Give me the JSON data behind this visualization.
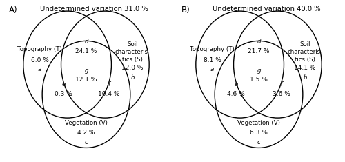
{
  "panel_A": {
    "title": "Undetermined variation 31.0 %",
    "label": "A)",
    "T_label": "Topography (T)",
    "T_val": "6.0 %",
    "T_letter": "a",
    "S_label": "Soil\ncharacteris-\ntics (S)",
    "S_val": "12.0 %",
    "S_letter": "b",
    "V_label": "Vegetation (V)",
    "V_val": "4.2 %",
    "V_letter": "c",
    "d_letter": "d",
    "d_val": "24.1 %",
    "e_letter": "e",
    "e_val": "0.3 %",
    "f_letter": "f",
    "f_val": "10.4 %",
    "g_letter": "g",
    "g_val": "12.1 %"
  },
  "panel_B": {
    "title": "Undetermined variation 40.0 %",
    "label": "B)",
    "T_label": "Topography (T)",
    "T_val": "8.1 %",
    "T_letter": "a",
    "S_label": "Soil\ncharacteris-\ntics (S)",
    "S_val": "14.1 %",
    "S_letter": "b",
    "V_label": "Vegetation (V)",
    "V_val": "6.3 %",
    "V_letter": "c",
    "d_letter": "d",
    "d_val": "21.7 %",
    "e_letter": "e",
    "e_val": "4.6 %",
    "f_letter": "f",
    "f_val": "3.6 %",
    "g_letter": "g",
    "g_val": "1.5 %"
  },
  "circle_color": "#000000",
  "circle_linewidth": 1.0,
  "fontsize_title": 7.2,
  "fontsize_label": 6.2,
  "fontsize_val": 6.5,
  "fontsize_letter": 6.2,
  "fontsize_panel": 8.5
}
